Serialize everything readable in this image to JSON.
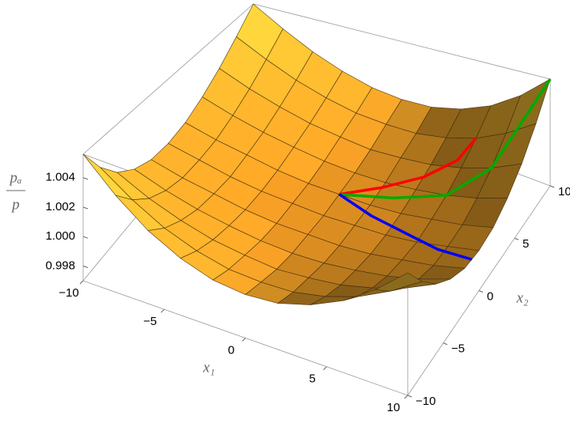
{
  "chart_data": {
    "type": "surface3d",
    "xlabel": "x₁",
    "ylabel": "x₂",
    "zlabel": {
      "numerator": "pₐ",
      "denominator": "p"
    },
    "x": [
      -10,
      -8,
      -6,
      -4,
      -2,
      0,
      2,
      4,
      6,
      8,
      10
    ],
    "y": [
      -10,
      -8,
      -6,
      -4,
      -2,
      0,
      2,
      4,
      6,
      8,
      10
    ],
    "z": [
      [
        1.0056,
        1.0036,
        1.002,
        1.0009,
        1.0002,
        1,
        1.0002,
        1.0009,
        1.002,
        1.0036,
        1.0056
      ],
      [
        1.0036,
        1.0021,
        1.0009,
        1.0001,
        0.9996,
        0.9995,
        0.9996,
        1.0001,
        1.0009,
        1.0021,
        1.0036
      ],
      [
        1.002,
        1.0009,
        1.0001,
        0.9995,
        0.9992,
        0.999,
        0.9992,
        0.9995,
        1.0001,
        1.0009,
        1.002
      ],
      [
        1.0009,
        1.0001,
        0.9995,
        0.9991,
        0.9988,
        0.9987,
        0.9988,
        0.9991,
        0.9995,
        1.0001,
        1.0009
      ],
      [
        1.0002,
        0.9996,
        0.9992,
        0.9988,
        0.9986,
        0.9986,
        0.9986,
        0.9988,
        0.9992,
        0.9996,
        1.0002
      ],
      [
        1,
        0.9995,
        0.999,
        0.9987,
        0.9986,
        0.9985,
        0.9986,
        0.9987,
        0.999,
        0.9995,
        1
      ],
      [
        1.0002,
        0.9996,
        0.9992,
        0.9988,
        0.9986,
        0.9986,
        0.9986,
        0.9988,
        0.9992,
        0.9996,
        1.0002
      ],
      [
        1.0009,
        1.0001,
        0.9995,
        0.9991,
        0.9988,
        0.9987,
        0.9988,
        0.9991,
        0.9995,
        1.0001,
        1.0009
      ],
      [
        1.002,
        1.0009,
        1.0001,
        0.9995,
        0.9992,
        0.999,
        0.9992,
        0.9995,
        1.0001,
        1.0009,
        1.002
      ],
      [
        1.0036,
        1.0021,
        1.0009,
        1.0001,
        0.9996,
        0.9995,
        0.9996,
        1.0001,
        1.0009,
        1.0021,
        1.0036
      ],
      [
        1.0056,
        1.0036,
        1.002,
        1.0009,
        1.0002,
        1,
        1.0002,
        1.0009,
        1.002,
        1.0036,
        1.0056
      ]
    ],
    "xlim": [
      -10,
      10
    ],
    "ylim": [
      -10,
      10
    ],
    "zlim": [
      0.997,
      1.0056
    ],
    "xticks": [
      {
        "value": -10,
        "label": "−10"
      },
      {
        "value": -5,
        "label": "−5"
      },
      0,
      5,
      10
    ],
    "yticks": [
      {
        "value": -10,
        "label": "−10"
      },
      {
        "value": -5,
        "label": "−5"
      },
      0,
      5,
      10
    ],
    "zticks": [
      0.998,
      {
        "value": 1,
        "label": "1.000"
      },
      1.002,
      1.004
    ],
    "series": [
      {
        "color": "#ff0000",
        "x": [
          0,
          2,
          4,
          5.5,
          6
        ],
        "y": [
          2,
          3.5,
          5,
          6.5,
          8
        ],
        "z": [
          0.9986,
          0.9988,
          0.9993,
          1.0001,
          1.0009
        ]
      },
      {
        "color": "#00aa00",
        "x": [
          0,
          3,
          6,
          8,
          10
        ],
        "y": [
          2,
          3,
          4,
          6,
          10
        ],
        "z": [
          0.9986,
          0.9988,
          0.9995,
          1.0009,
          1.0056
        ]
      },
      {
        "color": "#0000ff",
        "x": [
          0,
          2.5,
          5,
          7.5,
          10
        ],
        "y": [
          2,
          1.2,
          0.5,
          -0.3,
          -1
        ],
        "z": [
          0.9986,
          0.9986,
          0.9989,
          0.9993,
          1.0001
        ]
      }
    ]
  }
}
